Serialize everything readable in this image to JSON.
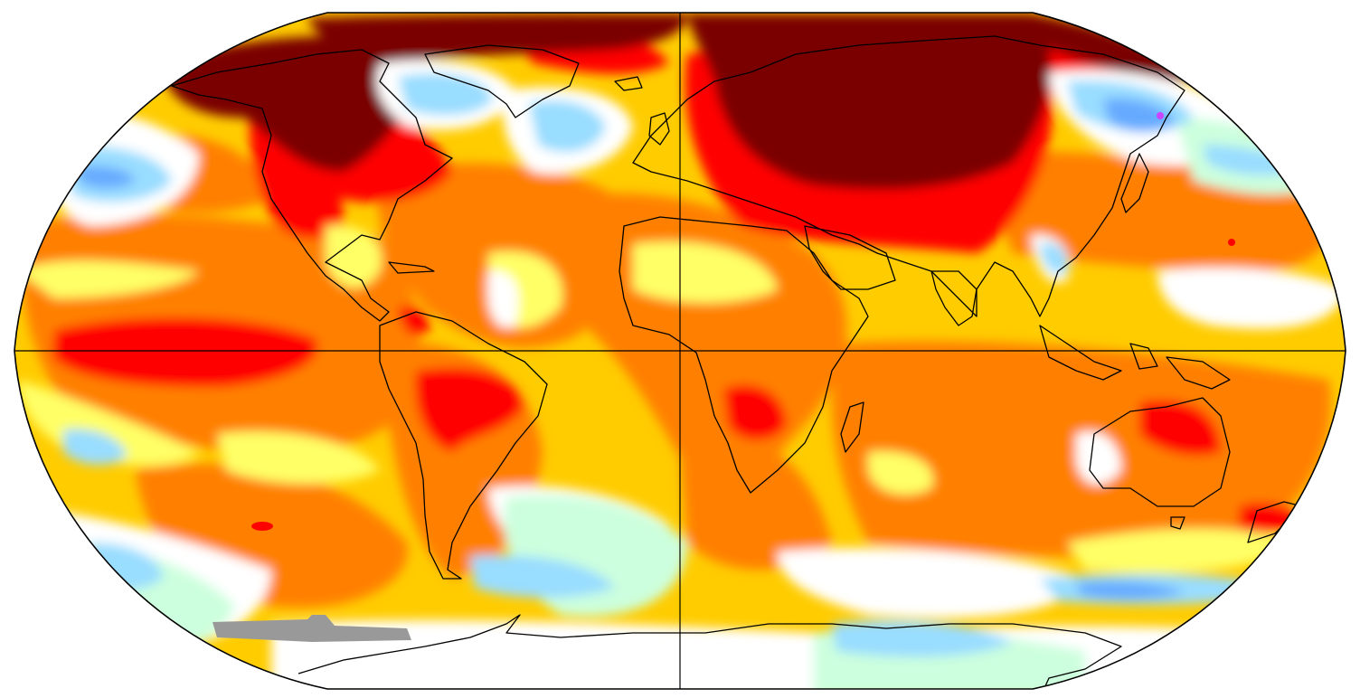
{
  "map": {
    "projection": "Robinson",
    "kind": "global surface temperature anomaly",
    "palette": {
      "very_hot": "#7a0000",
      "hot": "#ff0000",
      "warm": "#ff8000",
      "mild_warm": "#ffcc00",
      "slight_warm": "#ffff66",
      "neutral": "#ffffff",
      "slight_cool": "#ccffdd",
      "cool": "#99ddff",
      "cold": "#66aaff",
      "very_cold": "#3366ee",
      "no_data": "#999999"
    }
  }
}
